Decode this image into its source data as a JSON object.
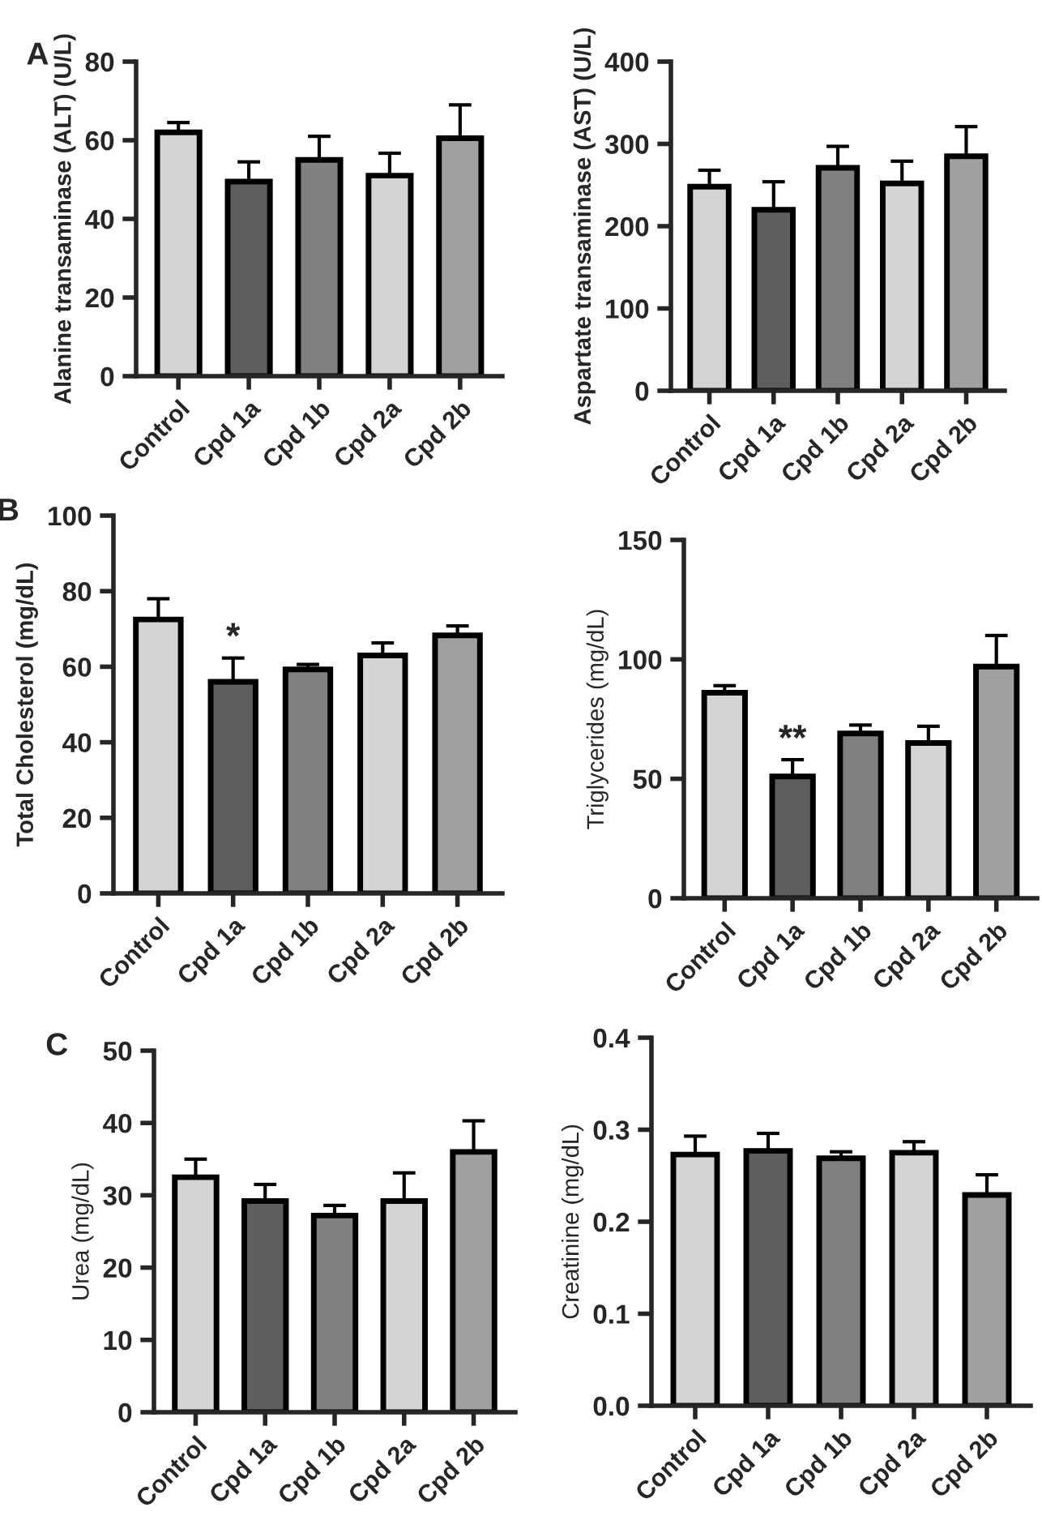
{
  "chart_data": [
    {
      "type": "bar",
      "annotations": [
        "A"
      ],
      "ylabel": "Alanine transaminase (ALT) (U/L)",
      "categories": [
        "Control",
        "Cpd 1a",
        "Cpd 1b",
        "Cpd 2a",
        "Cpd 2b"
      ],
      "values": [
        62,
        49.5,
        55,
        51,
        60.5
      ],
      "colors": [
        "#d4d4d4",
        "#5e5e5e",
        "#808080",
        "#d4d4d4",
        "#a0a0a0"
      ],
      "errors": [
        [
          62,
          64.5
        ],
        [
          49.5,
          54.5
        ],
        [
          55,
          61
        ],
        [
          51,
          56.7
        ],
        [
          60.5,
          69
        ]
      ],
      "ylim": [
        0,
        80
      ],
      "yticks": [
        0,
        20,
        40,
        60,
        80
      ],
      "grid": false
    },
    {
      "type": "bar",
      "ylabel": "Aspartate transaminase (AST) (U/L)",
      "categories": [
        "Control",
        "Cpd 1a",
        "Cpd 1b",
        "Cpd 2a",
        "Cpd 2b"
      ],
      "values": [
        248,
        220,
        271,
        252,
        285
      ],
      "colors": [
        "#d4d4d4",
        "#5e5e5e",
        "#808080",
        "#d4d4d4",
        "#a0a0a0"
      ],
      "errors": [
        [
          248,
          268
        ],
        [
          220,
          254
        ],
        [
          271,
          297
        ],
        [
          252,
          279
        ],
        [
          285,
          321
        ]
      ],
      "ylim": [
        0,
        400
      ],
      "yticks": [
        0,
        100,
        200,
        300,
        400
      ],
      "grid": false
    },
    {
      "type": "bar",
      "annotations": [
        "B",
        {
          "text": "*",
          "x": "Cpd 1a",
          "y": 63
        }
      ],
      "ylabel": "Total Cholesterol (mg/dL)",
      "categories": [
        "Control",
        "Cpd 1a",
        "Cpd 1b",
        "Cpd 2a",
        "Cpd 2b"
      ],
      "values": [
        72.5,
        56,
        59.3,
        63,
        68.3
      ],
      "colors": [
        "#d4d4d4",
        "#5e5e5e",
        "#808080",
        "#d4d4d4",
        "#a0a0a0"
      ],
      "errors": [
        [
          72.5,
          78
        ],
        [
          56,
          62.3
        ],
        [
          59.3,
          60.6
        ],
        [
          63,
          66.3
        ],
        [
          68.3,
          70.8
        ]
      ],
      "ylim": [
        0,
        100
      ],
      "yticks": [
        0,
        20,
        40,
        60,
        80,
        100
      ],
      "grid": false
    },
    {
      "type": "bar",
      "annotations": [
        {
          "text": "**",
          "x": "Cpd 1a",
          "y": 59
        }
      ],
      "ylabel": "Triglycerides (mg/dL)",
      "categories": [
        "Control",
        "Cpd 1a",
        "Cpd 1b",
        "Cpd 2a",
        "Cpd 2b"
      ],
      "values": [
        86,
        51,
        69,
        65,
        97
      ],
      "colors": [
        "#d4d4d4",
        "#5e5e5e",
        "#808080",
        "#d4d4d4",
        "#a0a0a0"
      ],
      "errors": [
        [
          86,
          89
        ],
        [
          51,
          58
        ],
        [
          69,
          72.5
        ],
        [
          65,
          72
        ],
        [
          97,
          110
        ]
      ],
      "ylim": [
        0,
        150
      ],
      "yticks": [
        0,
        50,
        100,
        150
      ],
      "grid": false
    },
    {
      "type": "bar",
      "annotations": [
        "C"
      ],
      "ylabel": "Urea (mg/dL)",
      "categories": [
        "Control",
        "Cpd 1a",
        "Cpd 1b",
        "Cpd 2a",
        "Cpd 2b"
      ],
      "values": [
        32.5,
        29.2,
        27.2,
        29.2,
        36
      ],
      "colors": [
        "#d4d4d4",
        "#5e5e5e",
        "#808080",
        "#d4d4d4",
        "#a0a0a0"
      ],
      "errors": [
        [
          32.5,
          35
        ],
        [
          29.2,
          31.5
        ],
        [
          27.2,
          28.6
        ],
        [
          29.2,
          33.1
        ],
        [
          36,
          40.3
        ]
      ],
      "ylim": [
        0,
        50
      ],
      "yticks": [
        0,
        10,
        20,
        30,
        40,
        50
      ],
      "grid": false
    },
    {
      "type": "bar",
      "ylabel": "Creatinine (mg/dL)",
      "categories": [
        "Control",
        "Cpd 1a",
        "Cpd 1b",
        "Cpd 2a",
        "Cpd 2b"
      ],
      "values": [
        0.273,
        0.277,
        0.269,
        0.275,
        0.229
      ],
      "colors": [
        "#d4d4d4",
        "#5e5e5e",
        "#808080",
        "#d4d4d4",
        "#a0a0a0"
      ],
      "errors": [
        [
          0.273,
          0.293
        ],
        [
          0.277,
          0.296
        ],
        [
          0.269,
          0.276
        ],
        [
          0.275,
          0.287
        ],
        [
          0.229,
          0.251
        ]
      ],
      "ylim": [
        0,
        0.4
      ],
      "yticks": [
        {
          "value": 0,
          "label": "0.0"
        },
        0.1,
        0.2,
        0.3,
        0.4
      ],
      "grid": false
    }
  ]
}
